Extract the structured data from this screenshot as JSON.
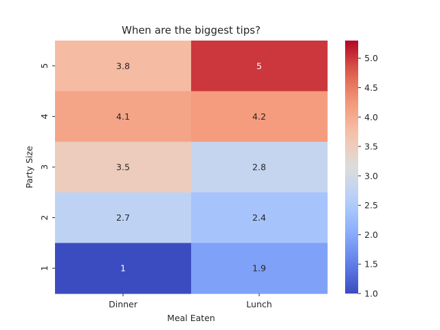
{
  "chart_data": {
    "type": "heatmap",
    "title": "When are the biggest tips?",
    "xlabel": "Meal Eaten",
    "ylabel": "Party Size",
    "x_categories": [
      "Dinner",
      "Lunch"
    ],
    "y_categories": [
      "5",
      "4",
      "3",
      "2",
      "1"
    ],
    "values": [
      [
        3.8,
        5.0
      ],
      [
        4.1,
        4.2
      ],
      [
        3.5,
        2.8
      ],
      [
        2.7,
        2.4
      ],
      [
        1.0,
        1.9
      ]
    ],
    "value_labels": [
      [
        "3.8",
        "5"
      ],
      [
        "4.1",
        "4.2"
      ],
      [
        "3.5",
        "2.8"
      ],
      [
        "2.7",
        "2.4"
      ],
      [
        "1",
        "1.9"
      ]
    ],
    "colormap": "coolwarm",
    "colorbar": {
      "range": [
        1.0,
        5.3
      ],
      "ticks": [
        "1.0",
        "1.5",
        "2.0",
        "2.5",
        "3.0",
        "3.5",
        "4.0",
        "4.5",
        "5.0"
      ]
    },
    "grid": false,
    "legend": "colorbar-right"
  }
}
